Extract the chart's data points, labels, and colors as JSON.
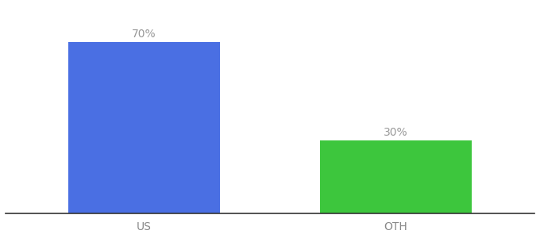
{
  "categories": [
    "US",
    "OTH"
  ],
  "values": [
    70,
    30
  ],
  "bar_colors": [
    "#4A6FE3",
    "#3DC63D"
  ],
  "labels": [
    "70%",
    "30%"
  ],
  "background_color": "#ffffff",
  "ylim": [
    0,
    85
  ],
  "bar_width": 0.6,
  "label_fontsize": 10,
  "tick_fontsize": 10,
  "tick_color": "#888888",
  "label_color": "#999999",
  "spine_color": "#333333"
}
